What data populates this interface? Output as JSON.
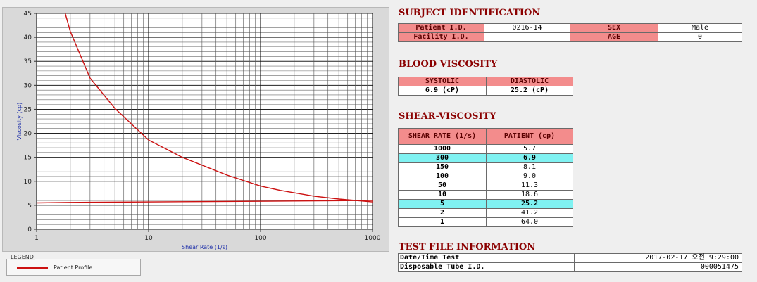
{
  "chart_data": {
    "type": "line",
    "xscale": "log",
    "xlim": [
      1,
      1000
    ],
    "ylim": [
      0,
      45
    ],
    "xlabel": "Shear Rate (1/s)",
    "ylabel": "Viscosity (cp)",
    "xticks": [
      "1",
      "10",
      "100",
      "1000"
    ],
    "yticks": [
      "0",
      "5",
      "10",
      "15",
      "20",
      "25",
      "30",
      "35",
      "40",
      "45"
    ],
    "grid": true,
    "series": [
      {
        "name": "Patient Profile",
        "color": "#cc1111",
        "x": [
          1.8,
          2,
          3,
          5,
          10,
          20,
          50,
          100,
          150,
          300,
          500,
          1000
        ],
        "y": [
          45,
          41.2,
          31.5,
          25.2,
          18.6,
          15.0,
          11.3,
          9.0,
          8.1,
          6.9,
          6.3,
          5.7
        ]
      },
      {
        "name": "",
        "color": "#cc1111",
        "x": [
          1,
          2,
          50,
          1000
        ],
        "y": [
          5.5,
          5.6,
          5.8,
          6.0
        ]
      }
    ]
  },
  "legend": {
    "title": "LEGEND",
    "items": [
      {
        "label": "Patient Profile",
        "color": "#cc1111"
      }
    ]
  },
  "subject": {
    "title": "SUBJECT IDENTIFICATION",
    "patient_id_label": "Patient I.D.",
    "patient_id": "0216-14",
    "sex_label": "SEX",
    "sex": "Male",
    "facility_id_label": "Facility I.D.",
    "facility_id": "",
    "age_label": "AGE",
    "age": "0"
  },
  "blood_viscosity": {
    "title": "BLOOD VISCOSITY",
    "systolic_label": "SYSTOLIC",
    "diastolic_label": "DIASTOLIC",
    "systolic": "6.9 (cP)",
    "diastolic": "25.2 (cP)"
  },
  "shear_viscosity": {
    "title": "SHEAR-VISCOSITY",
    "col_rate": "SHEAR RATE (1/s)",
    "col_patient": "PATIENT (cp)",
    "rows": [
      {
        "rate": "1000",
        "patient": "5.7",
        "highlight": false
      },
      {
        "rate": "300",
        "patient": "6.9",
        "highlight": true
      },
      {
        "rate": "150",
        "patient": "8.1",
        "highlight": false
      },
      {
        "rate": "100",
        "patient": "9.0",
        "highlight": false
      },
      {
        "rate": "50",
        "patient": "11.3",
        "highlight": false
      },
      {
        "rate": "10",
        "patient": "18.6",
        "highlight": false
      },
      {
        "rate": "5",
        "patient": "25.2",
        "highlight": true
      },
      {
        "rate": "2",
        "patient": "41.2",
        "highlight": false
      },
      {
        "rate": "1",
        "patient": "64.0",
        "highlight": false
      }
    ]
  },
  "test_file": {
    "title": "TEST FILE INFORMATION",
    "date_label": "Date/Time Test",
    "date_value": "2017-02-17  오전 9:29:00",
    "tube_label": "Disposable Tube I.D.",
    "tube_value": "000051475"
  }
}
